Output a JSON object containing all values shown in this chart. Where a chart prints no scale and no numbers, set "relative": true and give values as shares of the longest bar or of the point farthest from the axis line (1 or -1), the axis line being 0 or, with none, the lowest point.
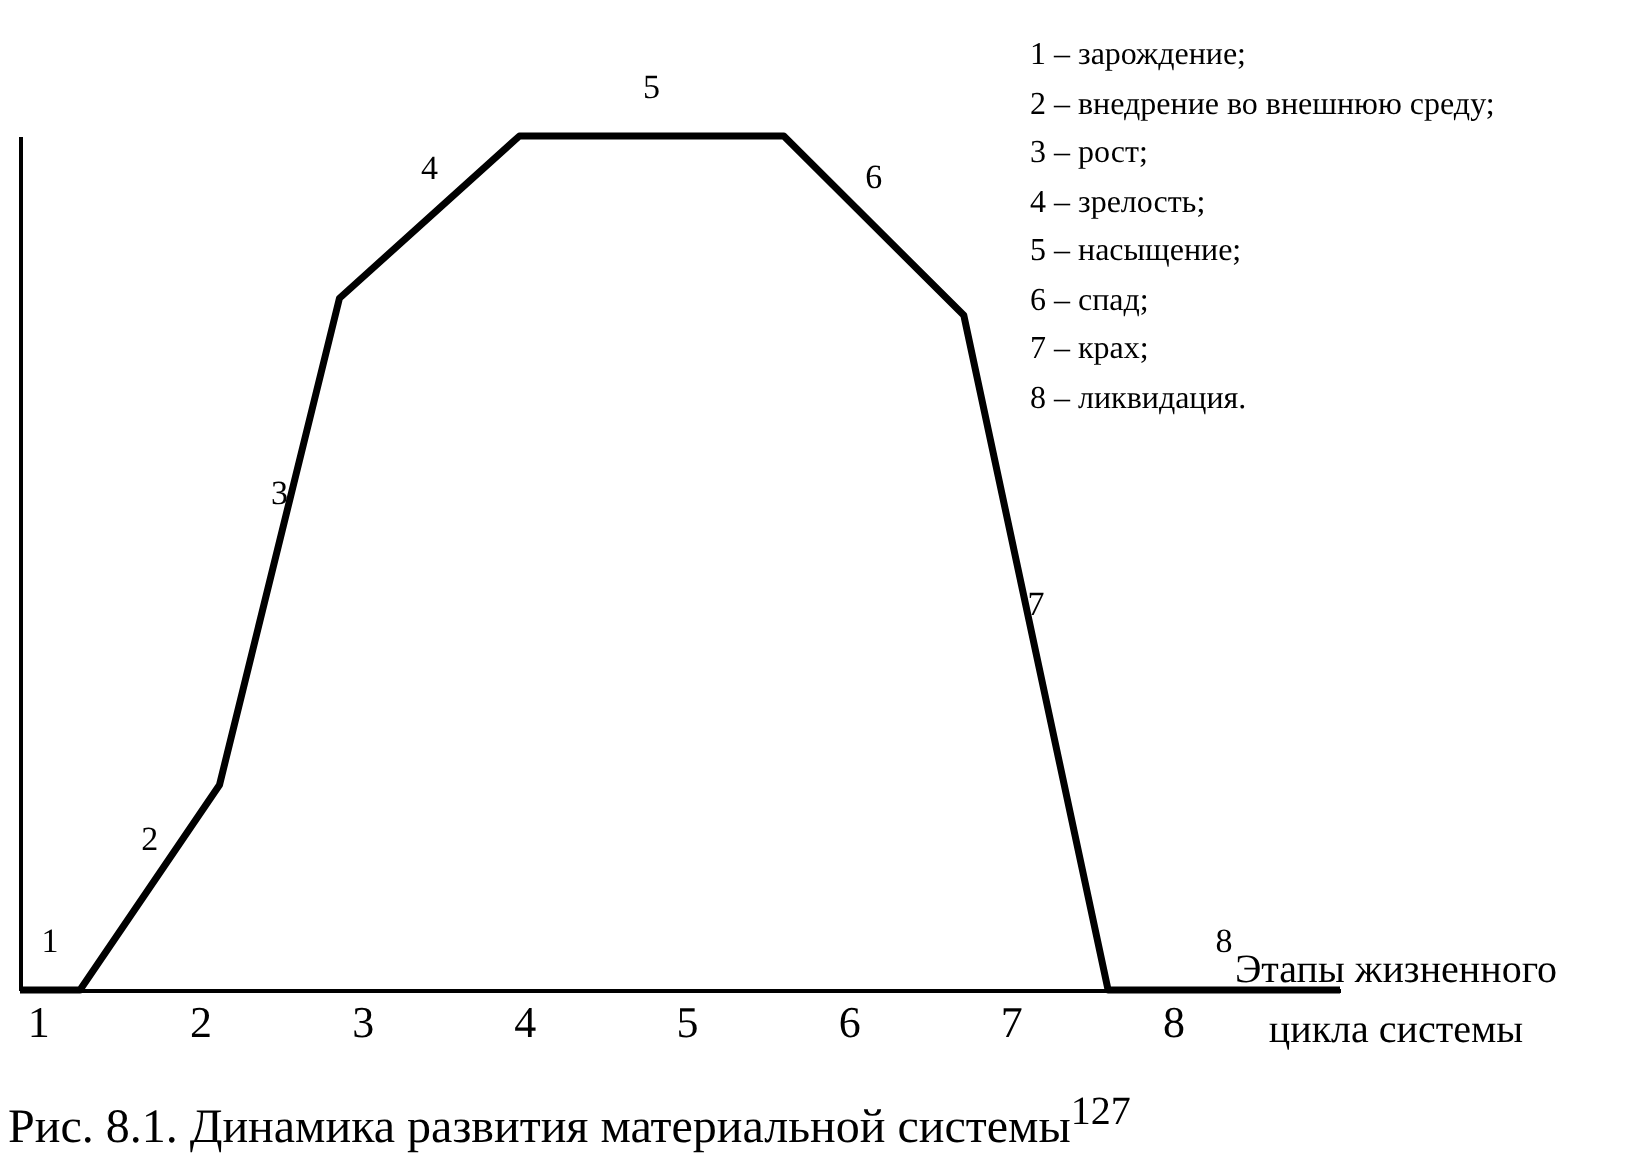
{
  "chart_data": {
    "type": "line",
    "relative": true,
    "title": "Рис. 8.1. Динамика развития материальной системы$^{127}$",
    "xlabel": "Этапы жизненного цикла системы",
    "x": [
      0.89,
      1.26,
      2.12,
      2.86,
      3.97,
      5.6,
      6.71,
      7.6,
      9.03
    ],
    "xlim": [
      0.89,
      9.03
    ],
    "xticks": [
      1,
      2,
      3,
      4,
      5,
      6,
      7,
      8
    ],
    "series": [
      {
        "color": "#000000",
        "values": [
          0,
          0,
          0.24,
          0.81,
          1,
          1,
          0.79,
          0,
          0
        ]
      }
    ],
    "marker": "none",
    "line_style": "solid",
    "grid": false,
    "annotations": [
      "1",
      "2",
      "3",
      "4",
      "5",
      "6",
      "7",
      "8",
      "1 – зарождение;",
      "2 – внедрение во внешнюю среду;",
      "3 – рост;",
      "4 – зрелость;",
      "5 – насыщение;",
      "6 – спад;",
      "7 – крах;",
      "8 – ликвидация."
    ]
  }
}
